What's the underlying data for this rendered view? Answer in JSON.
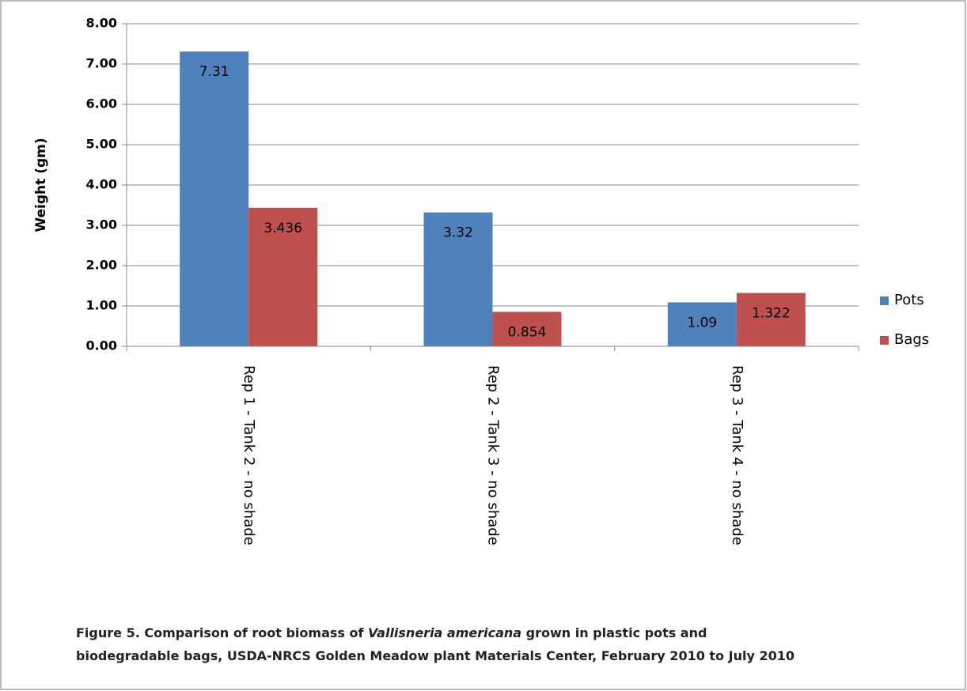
{
  "chart_data": {
    "type": "bar",
    "y_label": "Weight (gm)",
    "categories": [
      "Rep 1 - Tank 2 - no shade",
      "Rep 2 - Tank 3 - no shade",
      "Rep 3 - Tank 4 - no shade"
    ],
    "series": [
      {
        "name": "Pots",
        "color": "#4f81bd",
        "values": [
          7.31,
          3.32,
          1.09
        ]
      },
      {
        "name": "Bags",
        "color": "#c0504d",
        "values": [
          3.436,
          0.854,
          1.322
        ]
      }
    ],
    "ylim": [
      0,
      8
    ],
    "yticks": [
      {
        "value": 0,
        "label": "0.00"
      },
      {
        "value": 1,
        "label": "1.00"
      },
      {
        "value": 2,
        "label": "2.00"
      },
      {
        "value": 3,
        "label": "3.00"
      },
      {
        "value": 4,
        "label": "4.00"
      },
      {
        "value": 5,
        "label": "5.00"
      },
      {
        "value": 6,
        "label": "6.00"
      },
      {
        "value": 7,
        "label": "7.00"
      },
      {
        "value": 8,
        "label": "8.00"
      }
    ],
    "grid": true,
    "legend": "right",
    "caption": [
      "Figure 5. Comparison of root biomass of ",
      "Vallisneria americana",
      " grown in plastic pots and biodegradable bags, USDA-NRCS Golden Meadow plant Materials Center, February 2010 to July 2010"
    ]
  }
}
